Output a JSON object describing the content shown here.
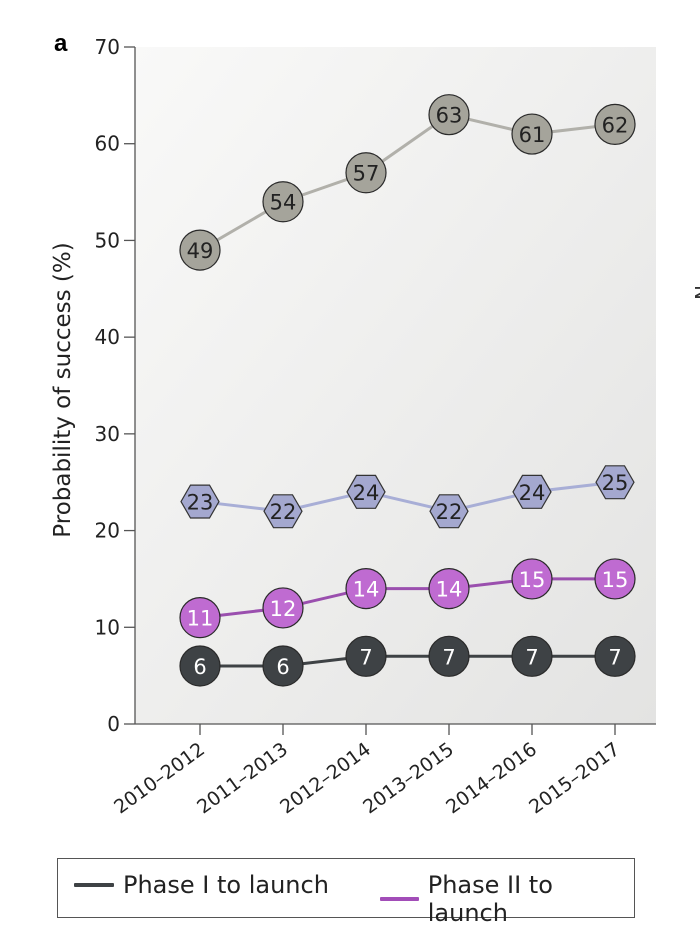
{
  "panel_label": "a",
  "cut_off_text": "N",
  "chart_data": {
    "type": "line",
    "ylabel": "Probability of success (%)",
    "xlabel": "",
    "ylim": [
      0,
      70
    ],
    "yticks": [
      0,
      10,
      20,
      30,
      40,
      50,
      60,
      70
    ],
    "categories": [
      "2010–2012",
      "2011–2013",
      "2012–2014",
      "2013–2015",
      "2014–2016",
      "2015–2017"
    ],
    "grid": false,
    "series": [
      {
        "key": "s1",
        "marker": "circle",
        "color": "#a5a49b",
        "line_color": "#b1b0aa",
        "label_color": "#222222",
        "values": [
          49,
          54,
          57,
          63,
          61,
          62
        ]
      },
      {
        "key": "s2",
        "marker": "hexagon",
        "color": "#a4a8cf",
        "line_color": "#a8aed6",
        "label_color": "#222222",
        "values": [
          23,
          22,
          24,
          22,
          24,
          25
        ]
      },
      {
        "key": "s3",
        "name": "Phase II to launch",
        "marker": "circle",
        "color": "#bf6bd1",
        "line_color": "#9a4fae",
        "label_color": "#ffffff",
        "values": [
          11,
          12,
          14,
          14,
          15,
          15
        ]
      },
      {
        "key": "s4",
        "name": "Phase I to launch",
        "marker": "circle",
        "color": "#3e4245",
        "line_color": "#3e4245",
        "label_color": "#ffffff",
        "values": [
          6,
          6,
          7,
          7,
          7,
          7
        ]
      }
    ]
  },
  "legend": {
    "items": [
      {
        "label": "Phase I to launch",
        "color": "#3e4245"
      },
      {
        "label": "Phase II to launch",
        "color": "#a24db8"
      }
    ]
  }
}
